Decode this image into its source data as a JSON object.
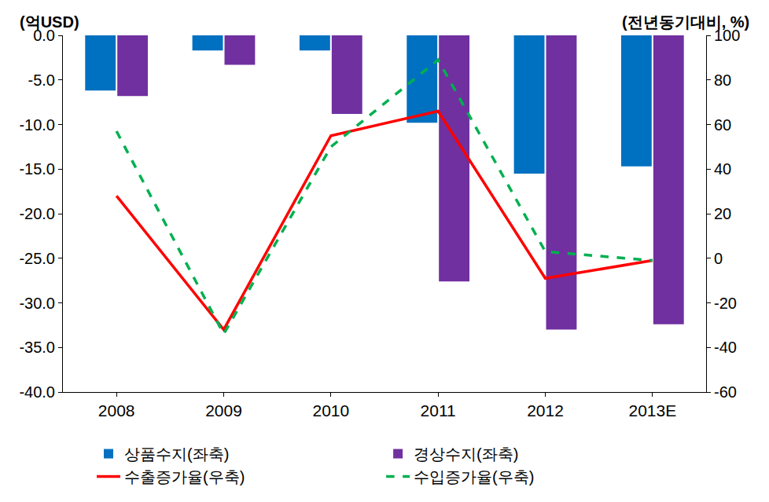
{
  "chart_data": {
    "type": "bar",
    "y_label": "(억USD)",
    "y2_label": "(전년동기대비, %)",
    "categories": [
      "2008",
      "2009",
      "2010",
      "2011",
      "2012",
      "2013E"
    ],
    "series": [
      {
        "name": "상품수지(좌축)",
        "type": "bar",
        "color": "#0070C0",
        "values": [
          -6.2,
          -1.7,
          -1.7,
          -9.8,
          -15.5,
          -14.7
        ]
      },
      {
        "name": "경상수지(좌축)",
        "type": "bar",
        "color": "#7030A0",
        "values": [
          -6.8,
          -3.3,
          -8.8,
          -27.6,
          -33.0,
          -32.4
        ]
      },
      {
        "name": "수출증가율(우축)",
        "type": "line",
        "axis": "y2",
        "color": "#FF0000",
        "line_style": "solid",
        "values": [
          28,
          -32,
          55,
          66,
          -9,
          -1
        ]
      },
      {
        "name": "수입증가율(우축)",
        "type": "line",
        "axis": "y2",
        "color": "#00B050",
        "line_style": "dash",
        "values": [
          57,
          -34,
          50,
          89,
          3,
          -1
        ]
      }
    ],
    "ylim": [
      -40,
      0
    ],
    "yticks": [
      {
        "value": -40,
        "label": "-40.0"
      },
      {
        "value": -35,
        "label": "-35.0"
      },
      {
        "value": -30,
        "label": "-30.0"
      },
      {
        "value": -25,
        "label": "-25.0"
      },
      {
        "value": -20,
        "label": "-20.0"
      },
      {
        "value": -15,
        "label": "-15.0"
      },
      {
        "value": -10,
        "label": "-10.0"
      },
      {
        "value": -5,
        "label": "-5.0"
      },
      {
        "value": 0,
        "label": "0.0"
      }
    ],
    "y2lim": [
      -60,
      100
    ],
    "y2ticks": [
      -60,
      -40,
      -20,
      0,
      20,
      40,
      60,
      80,
      100
    ],
    "grid": false,
    "legend": "bottom"
  }
}
